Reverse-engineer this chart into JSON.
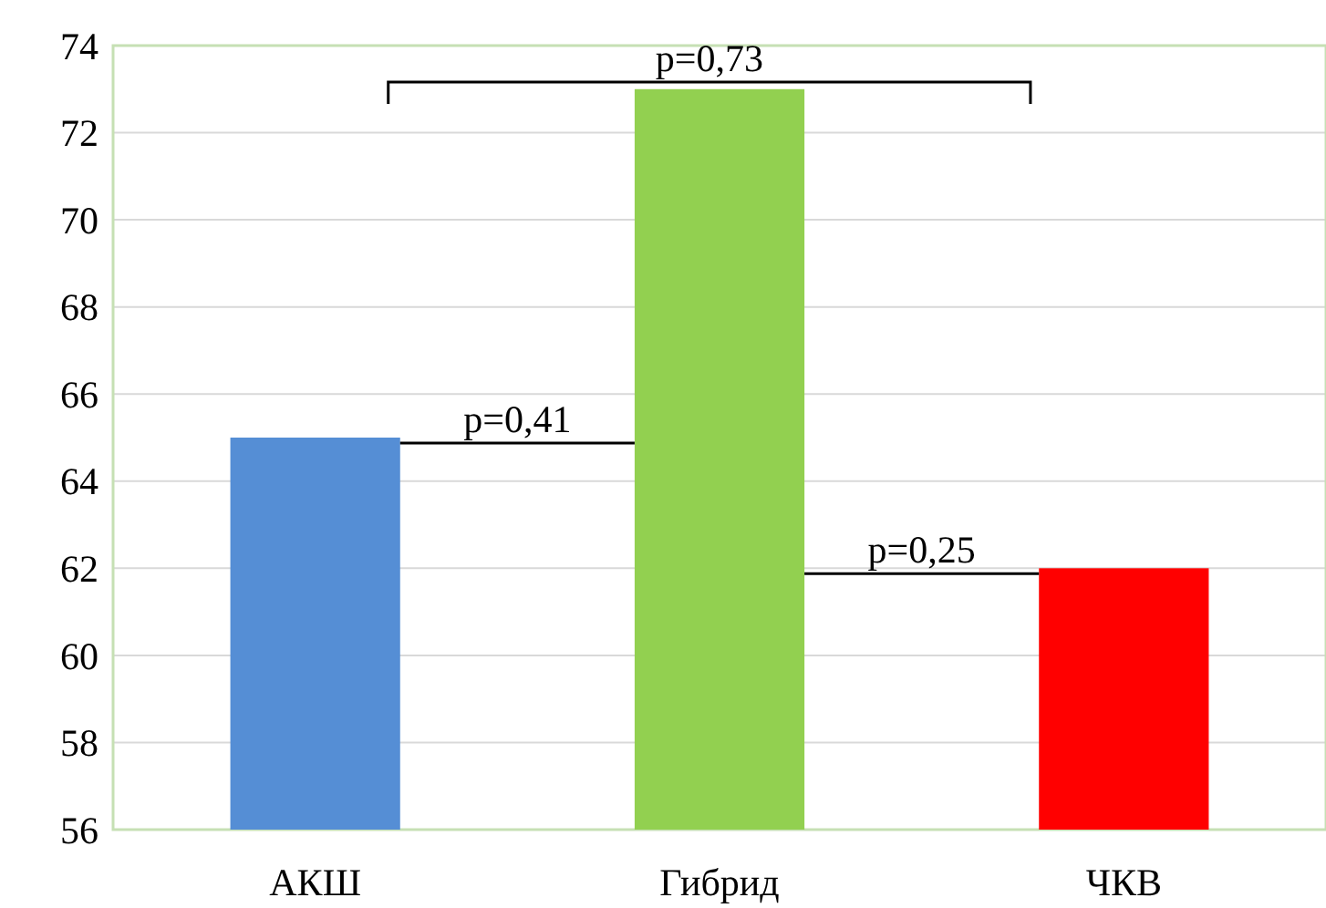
{
  "chart_data": {
    "type": "bar",
    "categories": [
      "АКШ",
      "Гибрид",
      "ЧКВ"
    ],
    "values": [
      65,
      73,
      62
    ],
    "colors": [
      "#558ed5",
      "#92d050",
      "#ff0000"
    ],
    "ylim": [
      56,
      74
    ],
    "yticks": [
      56,
      58,
      60,
      62,
      64,
      66,
      68,
      70,
      72,
      74
    ],
    "grid": "y",
    "annotations": [
      "p=0,73",
      "p=0,41",
      "p=0,25"
    ]
  }
}
